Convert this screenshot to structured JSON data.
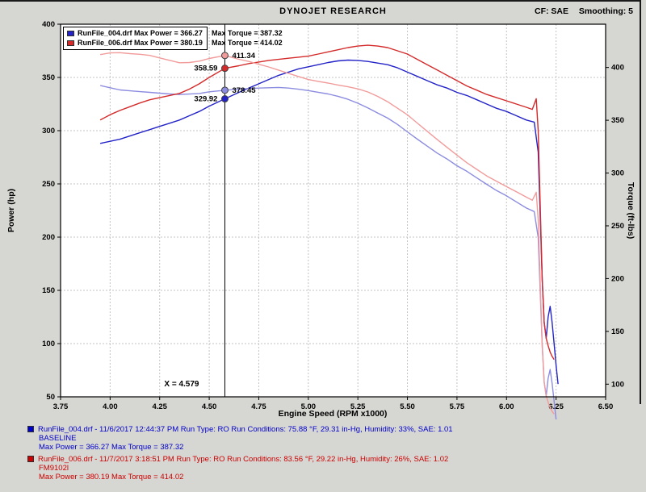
{
  "header": {
    "title": "DYNOJET RESEARCH",
    "cf": "CF: SAE",
    "smoothing": "Smoothing: 5"
  },
  "legend": {
    "rows": [
      {
        "power_text": "RunFile_004.drf Max Power = 366.27",
        "torque_text": "Max Torque = 387.32",
        "color": "#2323c8"
      },
      {
        "power_text": "RunFile_006.drf Max Power = 380.19",
        "torque_text": "Max Torque = 414.02",
        "color": "#d42a2a"
      }
    ]
  },
  "footer": {
    "runs": [
      {
        "color": "#0000cc",
        "details": "RunFile_004.drf - 11/6/2017 12:44:37 PM  Run Type: RO  Run Conditions: 75.88 °F, 29.31 in-Hg,  Humidity:  33%, SAE: 1.01",
        "tag": "BASELINE",
        "max_line": "Max Power = 366.27  Max Torque = 387.32"
      },
      {
        "color": "#cc0000",
        "details": "RunFile_006.drf - 11/7/2017 3:18:51 PM  Run Type: RO  Run Conditions: 83.56 °F, 29.22 in-Hg,  Humidity:  26%, SAE: 1.02",
        "tag": "FM9102l",
        "max_line": "Max Power = 380.19  Max Torque = 414.02"
      }
    ]
  },
  "chart_data": {
    "type": "line",
    "title": "DYNOJET RESEARCH",
    "xlabel": "Engine Speed (RPM x1000)",
    "ylabel_left": "Power (hp)",
    "ylabel_right": "Torque (ft-lbs)",
    "correction_factor": "SAE",
    "smoothing": 5,
    "grid": true,
    "legend_position": "top-left",
    "x_range": [
      3.75,
      6.5
    ],
    "x_ticks": [
      "3.75",
      "4.00",
      "4.25",
      "4.50",
      "4.75",
      "5.00",
      "5.25",
      "5.50",
      "5.75",
      "6.00",
      "6.25",
      "6.50"
    ],
    "y_left_range": [
      50,
      400
    ],
    "y_left_ticks": [
      "50",
      "100",
      "150",
      "200",
      "250",
      "300",
      "350",
      "400"
    ],
    "y_right_range": [
      88,
      441
    ],
    "y_right_ticks": [
      "100",
      "150",
      "200",
      "250",
      "300",
      "350",
      "400"
    ],
    "runs": [
      {
        "file": "RunFile_004.drf",
        "label": "BASELINE",
        "max_power": 366.27,
        "max_torque": 387.32
      },
      {
        "file": "RunFile_006.drf",
        "label": "FM9102l",
        "max_power": 380.19,
        "max_torque": 414.02
      }
    ],
    "cursor": {
      "x": 4.579,
      "x_label": "X = 4.579",
      "markers": [
        {
          "text": "358.59",
          "value": 358.59,
          "axis": "left",
          "color": "#d42a2a",
          "side": "left"
        },
        {
          "text": "411.34",
          "value": 411.34,
          "axis": "right",
          "color": "#f29b9b",
          "side": "right"
        },
        {
          "text": "329.92",
          "value": 329.92,
          "axis": "left",
          "color": "#2323c8",
          "side": "left"
        },
        {
          "text": "378.45",
          "value": 378.45,
          "axis": "right",
          "color": "#8c8ce0",
          "side": "right"
        }
      ]
    },
    "series": [
      {
        "id": "run1-power",
        "name": "RunFile_004 Power",
        "axis": "left",
        "color": "#2323c8",
        "points": [
          [
            3.95,
            288
          ],
          [
            4.0,
            290
          ],
          [
            4.05,
            292
          ],
          [
            4.1,
            295
          ],
          [
            4.15,
            298
          ],
          [
            4.2,
            301
          ],
          [
            4.25,
            304
          ],
          [
            4.3,
            307
          ],
          [
            4.35,
            310
          ],
          [
            4.4,
            314
          ],
          [
            4.45,
            318
          ],
          [
            4.5,
            323
          ],
          [
            4.579,
            329.92
          ],
          [
            4.65,
            336
          ],
          [
            4.7,
            340
          ],
          [
            4.75,
            344
          ],
          [
            4.8,
            348
          ],
          [
            4.85,
            352
          ],
          [
            4.9,
            355
          ],
          [
            4.95,
            358
          ],
          [
            5.0,
            360
          ],
          [
            5.05,
            362
          ],
          [
            5.1,
            364
          ],
          [
            5.15,
            365.5
          ],
          [
            5.2,
            366.27
          ],
          [
            5.25,
            366
          ],
          [
            5.3,
            365
          ],
          [
            5.35,
            363.5
          ],
          [
            5.4,
            362
          ],
          [
            5.45,
            359
          ],
          [
            5.5,
            355
          ],
          [
            5.55,
            351
          ],
          [
            5.6,
            347
          ],
          [
            5.65,
            343
          ],
          [
            5.7,
            340
          ],
          [
            5.75,
            336
          ],
          [
            5.8,
            333
          ],
          [
            5.85,
            329
          ],
          [
            5.9,
            325
          ],
          [
            5.95,
            321
          ],
          [
            6.0,
            318
          ],
          [
            6.05,
            314
          ],
          [
            6.1,
            310
          ],
          [
            6.14,
            308
          ],
          [
            6.16,
            280
          ],
          [
            6.17,
            220
          ],
          [
            6.18,
            160
          ],
          [
            6.19,
            120
          ],
          [
            6.2,
            105
          ],
          [
            6.21,
            125
          ],
          [
            6.22,
            135
          ],
          [
            6.23,
            120
          ],
          [
            6.24,
            100
          ],
          [
            6.25,
            80
          ],
          [
            6.26,
            62
          ]
        ]
      },
      {
        "id": "run1-torque",
        "name": "RunFile_004 Torque",
        "axis": "right",
        "color": "#8c8ce0",
        "points": [
          [
            3.95,
            382.9
          ],
          [
            4.0,
            380.8
          ],
          [
            4.05,
            378.7
          ],
          [
            4.1,
            377.9
          ],
          [
            4.15,
            377.1
          ],
          [
            4.2,
            376.4
          ],
          [
            4.25,
            375.7
          ],
          [
            4.3,
            374.9
          ],
          [
            4.35,
            374.4
          ],
          [
            4.4,
            374.8
          ],
          [
            4.45,
            375.4
          ],
          [
            4.5,
            377.0
          ],
          [
            4.579,
            378.45
          ],
          [
            4.65,
            379.6
          ],
          [
            4.7,
            380.0
          ],
          [
            4.75,
            380.5
          ],
          [
            4.8,
            380.8
          ],
          [
            4.85,
            381.1
          ],
          [
            4.9,
            380.5
          ],
          [
            4.95,
            379.4
          ],
          [
            5.0,
            378.1
          ],
          [
            5.05,
            376.5
          ],
          [
            5.1,
            374.9
          ],
          [
            5.15,
            372.7
          ],
          [
            5.2,
            369.9
          ],
          [
            5.25,
            366.1
          ],
          [
            5.3,
            361.7
          ],
          [
            5.35,
            356.9
          ],
          [
            5.4,
            352.1
          ],
          [
            5.45,
            346.0
          ],
          [
            5.5,
            339.0
          ],
          [
            5.55,
            332.1
          ],
          [
            5.6,
            325.5
          ],
          [
            5.65,
            318.9
          ],
          [
            5.7,
            313.3
          ],
          [
            5.75,
            306.9
          ],
          [
            5.8,
            301.6
          ],
          [
            5.85,
            295.4
          ],
          [
            5.9,
            289.3
          ],
          [
            5.95,
            283.4
          ],
          [
            6.0,
            278.4
          ],
          [
            6.05,
            272.7
          ],
          [
            6.1,
            266.9
          ],
          [
            6.14,
            263.5
          ],
          [
            6.16,
            239.0
          ],
          [
            6.17,
            187.8
          ],
          [
            6.18,
            136.6
          ],
          [
            6.19,
            102.0
          ],
          [
            6.2,
            88.9
          ],
          [
            6.21,
            105.6
          ],
          [
            6.22,
            113.9
          ],
          [
            6.23,
            100.9
          ],
          [
            6.24,
            83.8
          ],
          [
            6.25,
            66.9
          ],
          [
            6.26,
            51.9
          ]
        ]
      },
      {
        "id": "run2-power",
        "name": "RunFile_006 Power",
        "axis": "left",
        "color": "#d42a2a",
        "points": [
          [
            3.95,
            310
          ],
          [
            4.0,
            315
          ],
          [
            4.05,
            319
          ],
          [
            4.1,
            322.5
          ],
          [
            4.15,
            326
          ],
          [
            4.2,
            329
          ],
          [
            4.25,
            331
          ],
          [
            4.3,
            333
          ],
          [
            4.35,
            335
          ],
          [
            4.4,
            339
          ],
          [
            4.45,
            344
          ],
          [
            4.5,
            350
          ],
          [
            4.579,
            358.59
          ],
          [
            4.65,
            361
          ],
          [
            4.7,
            363
          ],
          [
            4.75,
            364.5
          ],
          [
            4.8,
            366
          ],
          [
            4.85,
            367
          ],
          [
            4.9,
            368
          ],
          [
            4.95,
            369
          ],
          [
            5.0,
            370
          ],
          [
            5.05,
            372
          ],
          [
            5.1,
            374
          ],
          [
            5.15,
            376
          ],
          [
            5.2,
            378
          ],
          [
            5.25,
            379.5
          ],
          [
            5.3,
            380.19
          ],
          [
            5.35,
            379.5
          ],
          [
            5.4,
            378
          ],
          [
            5.45,
            375
          ],
          [
            5.5,
            372
          ],
          [
            5.55,
            367
          ],
          [
            5.6,
            362
          ],
          [
            5.65,
            357
          ],
          [
            5.7,
            352
          ],
          [
            5.75,
            347
          ],
          [
            5.8,
            342
          ],
          [
            5.85,
            338
          ],
          [
            5.9,
            334
          ],
          [
            5.95,
            331
          ],
          [
            6.0,
            328
          ],
          [
            6.05,
            325
          ],
          [
            6.1,
            322
          ],
          [
            6.13,
            320
          ],
          [
            6.15,
            330
          ],
          [
            6.16,
            300
          ],
          [
            6.17,
            230
          ],
          [
            6.18,
            160
          ],
          [
            6.19,
            120
          ],
          [
            6.2,
            105
          ],
          [
            6.21,
            98
          ],
          [
            6.22,
            92
          ],
          [
            6.23,
            88
          ],
          [
            6.24,
            85
          ]
        ]
      },
      {
        "id": "run2-torque",
        "name": "RunFile_006 Torque",
        "axis": "right",
        "color": "#f29b9b",
        "points": [
          [
            3.95,
            412.2
          ],
          [
            4.0,
            413.8
          ],
          [
            4.05,
            414.0
          ],
          [
            4.1,
            413.1
          ],
          [
            4.15,
            412.5
          ],
          [
            4.2,
            411.4
          ],
          [
            4.25,
            409.1
          ],
          [
            4.3,
            406.8
          ],
          [
            4.35,
            404.5
          ],
          [
            4.4,
            404.7
          ],
          [
            4.45,
            406.0
          ],
          [
            4.5,
            408.5
          ],
          [
            4.579,
            411.34
          ],
          [
            4.65,
            407.8
          ],
          [
            4.7,
            405.7
          ],
          [
            4.75,
            403.0
          ],
          [
            4.8,
            400.5
          ],
          [
            4.85,
            397.5
          ],
          [
            4.9,
            394.4
          ],
          [
            4.95,
            391.5
          ],
          [
            5.0,
            388.6
          ],
          [
            5.05,
            386.8
          ],
          [
            5.1,
            385.2
          ],
          [
            5.15,
            383.4
          ],
          [
            5.2,
            381.7
          ],
          [
            5.25,
            379.7
          ],
          [
            5.3,
            376.8
          ],
          [
            5.35,
            372.6
          ],
          [
            5.4,
            367.6
          ],
          [
            5.45,
            361.4
          ],
          [
            5.5,
            355.2
          ],
          [
            5.55,
            347.3
          ],
          [
            5.6,
            339.5
          ],
          [
            5.65,
            331.8
          ],
          [
            5.7,
            324.3
          ],
          [
            5.75,
            317.0
          ],
          [
            5.8,
            309.7
          ],
          [
            5.85,
            303.5
          ],
          [
            5.9,
            297.3
          ],
          [
            5.95,
            292.2
          ],
          [
            6.0,
            287.1
          ],
          [
            6.05,
            282.2
          ],
          [
            6.1,
            277.2
          ],
          [
            6.13,
            274.2
          ],
          [
            6.15,
            281.8
          ],
          [
            6.16,
            255.9
          ],
          [
            6.17,
            195.8
          ],
          [
            6.18,
            136.1
          ],
          [
            6.19,
            101.9
          ],
          [
            6.2,
            88.9
          ],
          [
            6.21,
            82.9
          ],
          [
            6.22,
            77.7
          ],
          [
            6.23,
            74.3
          ],
          [
            6.24,
            71.7
          ]
        ]
      }
    ]
  }
}
